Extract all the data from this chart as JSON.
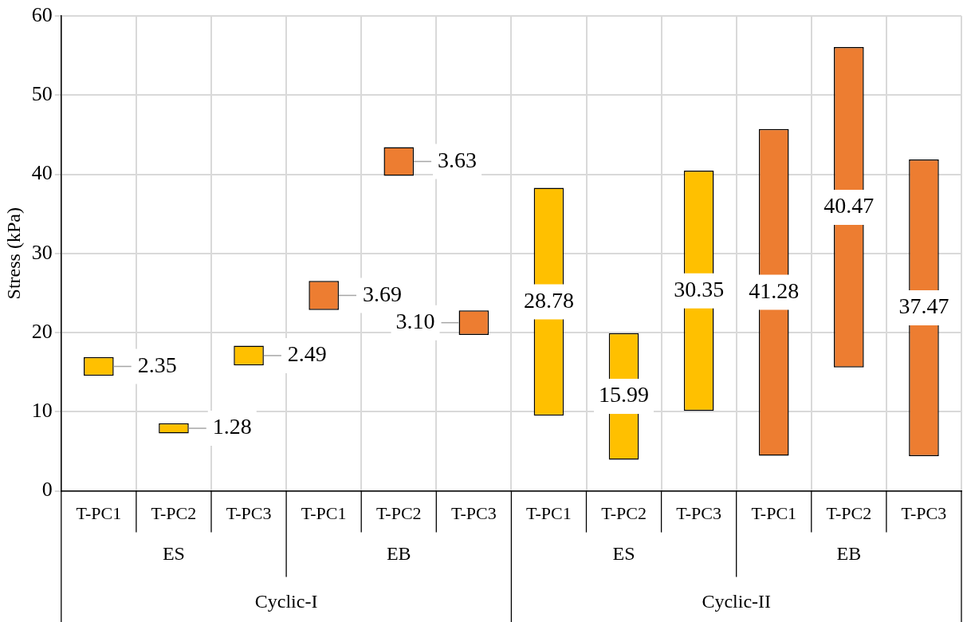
{
  "chart_data": {
    "type": "bar",
    "ylabel": "Stress (kPa)",
    "categories": [
      "T-PC1",
      "T-PC2",
      "T-PC3",
      "T-PC1",
      "T-PC2",
      "T-PC3",
      "T-PC1",
      "T-PC2",
      "T-PC3",
      "T-PC1",
      "T-PC2",
      "T-PC3"
    ],
    "base": [
      14.55,
      7.27,
      15.85,
      22.85,
      39.8,
      19.7,
      9.5,
      3.95,
      10.1,
      4.45,
      15.6,
      4.4
    ],
    "values": [
      2.35,
      1.28,
      2.49,
      3.69,
      3.63,
      3.1,
      28.78,
      15.99,
      30.35,
      41.28,
      40.47,
      37.47
    ],
    "value_labels": [
      "2.35",
      "1.28",
      "2.49",
      "3.69",
      "3.63",
      "3.10",
      "28.78",
      "15.99",
      "30.35",
      "41.28",
      "40.47",
      "37.47"
    ],
    "colors": [
      "#ffc000",
      "#ffc000",
      "#ffc000",
      "#ed7d31",
      "#ed7d31",
      "#ed7d31",
      "#ffc000",
      "#ffc000",
      "#ffc000",
      "#ed7d31",
      "#ed7d31",
      "#ed7d31"
    ],
    "annotations": [
      "ES",
      "EB",
      "ES",
      "EB",
      "Cyclic-I",
      "Cyclic-II"
    ],
    "ylim": [
      0,
      60
    ],
    "yticks": [
      0,
      10,
      20,
      30,
      40,
      50,
      60
    ],
    "grid": true
  }
}
